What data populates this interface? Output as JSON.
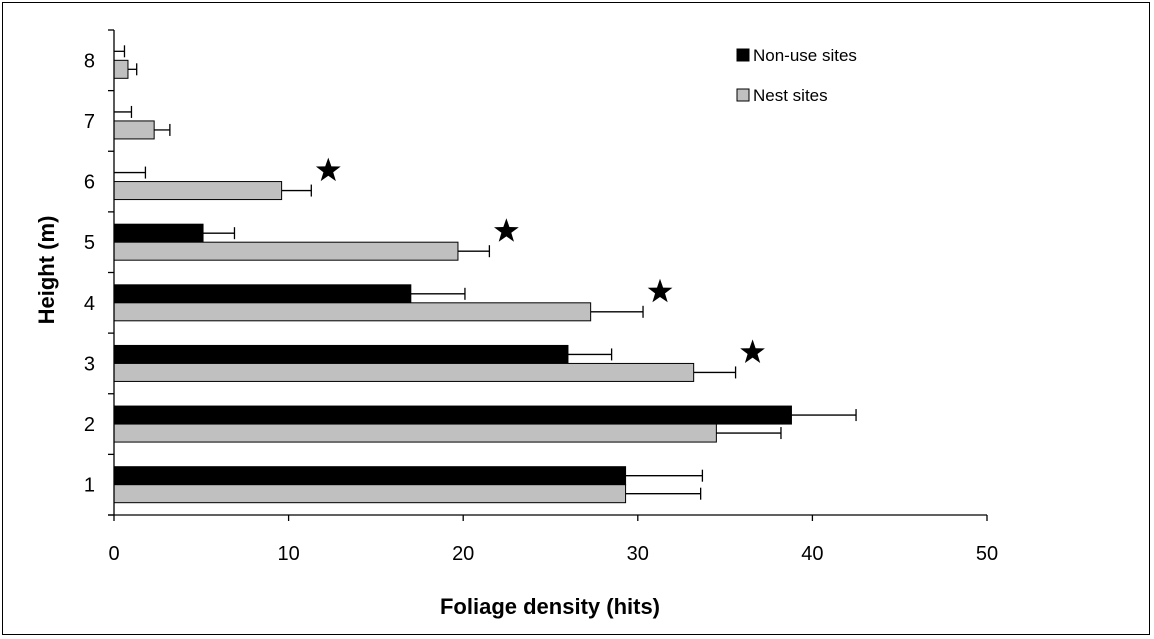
{
  "chart_data": {
    "type": "bar",
    "orientation": "horizontal",
    "title": "",
    "xlabel": "Foliage density (hits)",
    "ylabel": "Height (m)",
    "xlim": [
      0,
      50
    ],
    "xticks": [
      "0",
      "10",
      "20",
      "30",
      "40",
      "50"
    ],
    "categories": [
      "1",
      "2",
      "3",
      "4",
      "5",
      "6",
      "7",
      "8"
    ],
    "series": [
      {
        "name": "Non-use sites",
        "color": "#000000",
        "values": [
          29.3,
          38.8,
          26.0,
          17.0,
          5.1,
          0.0,
          0.0,
          0.0
        ],
        "error": [
          4.4,
          3.7,
          2.5,
          3.1,
          1.8,
          1.8,
          1.0,
          0.6
        ]
      },
      {
        "name": "Nest sites",
        "color": "#c0c0c0",
        "values": [
          29.3,
          34.5,
          33.2,
          27.3,
          19.7,
          9.6,
          2.3,
          0.8
        ],
        "error": [
          4.3,
          3.7,
          2.4,
          3.0,
          1.8,
          1.7,
          0.9,
          0.5
        ]
      }
    ],
    "significance_markers": [
      "3",
      "4",
      "5",
      "6"
    ],
    "legend_position": "top-right",
    "grid": false
  }
}
